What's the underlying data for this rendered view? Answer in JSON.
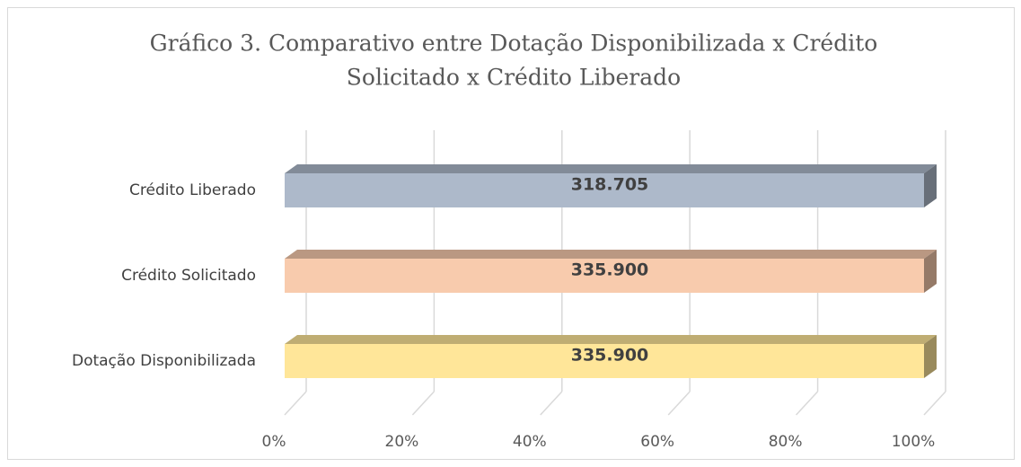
{
  "chart_data": {
    "type": "bar",
    "orientation": "horizontal",
    "stacked": "percent",
    "title": [
      "Gráfico 3. Comparativo entre Dotação Disponibilizada x Crédito",
      "Solicitado x Crédito Liberado"
    ],
    "categories": [
      "Crédito  Liberado",
      "Crédito Solicitado",
      "Dotação Disponibilizada"
    ],
    "values": [
      318705,
      335900,
      335900
    ],
    "value_labels": [
      "318.705",
      "335.900",
      "335.900"
    ],
    "colors": [
      "#adb9ca",
      "#f8cbad",
      "#ffe699"
    ],
    "xlim": [
      0,
      100
    ],
    "xticks": [
      {
        "value": 0,
        "label": "0%"
      },
      {
        "value": 20,
        "label": "20%"
      },
      {
        "value": 40,
        "label": "40%"
      },
      {
        "value": 60,
        "label": "60%"
      },
      {
        "value": 80,
        "label": "80%"
      },
      {
        "value": 100,
        "label": "100%"
      }
    ],
    "grid": true
  }
}
